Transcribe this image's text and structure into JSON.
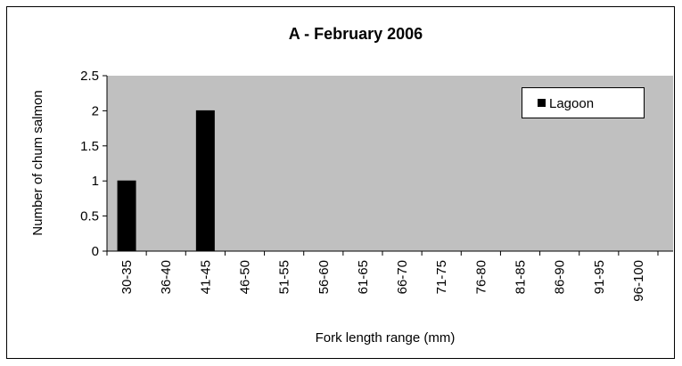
{
  "chart_data": {
    "type": "bar",
    "title": "A - February 2006",
    "x_label": "Fork length range (mm)",
    "y_label": "Number of chum salmon",
    "categories": [
      "30-35",
      "36-40",
      "41-45",
      "46-50",
      "51-55",
      "56-60",
      "61-65",
      "66-70",
      "71-75",
      "76-80",
      "81-85",
      "86-90",
      "91-95",
      "96-100"
    ],
    "series": [
      {
        "name": "Lagoon",
        "color": "#000000",
        "values": [
          1,
          0,
          2,
          0,
          0,
          0,
          0,
          0,
          0,
          0,
          0,
          0,
          0,
          0
        ]
      }
    ],
    "ylim": [
      0,
      2.5
    ],
    "yticks": [
      0,
      0.5,
      1,
      1.5,
      2,
      2.5
    ],
    "grid": false,
    "legend": "upper right"
  }
}
